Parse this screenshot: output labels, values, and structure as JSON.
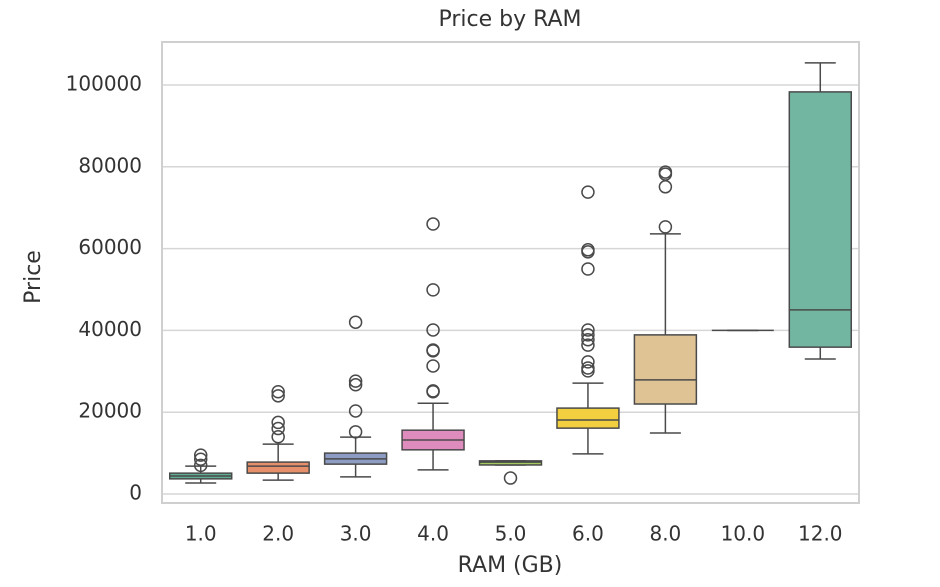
{
  "chart_data": {
    "type": "box",
    "title": "Price by RAM",
    "x_label": "RAM (GB)",
    "y_label": "Price",
    "categories": [
      "1.0",
      "2.0",
      "3.0",
      "4.0",
      "5.0",
      "6.0",
      "8.0",
      "10.0",
      "12.0"
    ],
    "colors": [
      "#5fae93",
      "#e5906b",
      "#8c9cc2",
      "#de8cbd",
      "#a3c95c",
      "#f2cf3f",
      "#dfc394",
      "#b0b0b0",
      "#72b6a1"
    ],
    "boxes": [
      {
        "whislo": 2700,
        "q1": 3700,
        "med": 4400,
        "q3": 5100,
        "whishi": 6800,
        "fliers": [
          7000,
          8500,
          9500
        ]
      },
      {
        "whislo": 3400,
        "q1": 5100,
        "med": 6800,
        "q3": 7800,
        "whishi": 12200,
        "fliers": [
          14000,
          16000,
          17500,
          24000,
          25000
        ]
      },
      {
        "whislo": 4200,
        "q1": 7300,
        "med": 8600,
        "q3": 10000,
        "whishi": 13900,
        "fliers": [
          15200,
          20300,
          26700,
          27600,
          42000
        ]
      },
      {
        "whislo": 5900,
        "q1": 10800,
        "med": 13200,
        "q3": 15600,
        "whishi": 22200,
        "fliers": [
          25000,
          25200,
          31300,
          35000,
          35200,
          40100,
          49900,
          66000
        ]
      },
      {
        "whislo": 7100,
        "q1": 7100,
        "med": 7800,
        "q3": 8100,
        "whishi": 8100,
        "fliers": [
          3900
        ]
      },
      {
        "whislo": 9800,
        "q1": 16100,
        "med": 18100,
        "q3": 21000,
        "whishi": 27100,
        "fliers": [
          30100,
          30800,
          32300,
          36400,
          37700,
          38900,
          40100,
          55000,
          59200,
          59700,
          73800
        ]
      },
      {
        "whislo": 14900,
        "q1": 22000,
        "med": 27900,
        "q3": 38900,
        "whishi": 63600,
        "fliers": [
          65300,
          75100,
          78200,
          78700
        ]
      },
      {
        "whislo": 40000,
        "q1": 40000,
        "med": 40000,
        "q3": 40000,
        "whishi": 40000,
        "fliers": []
      },
      {
        "whislo": 33000,
        "q1": 35900,
        "med": 45000,
        "q3": 98300,
        "whishi": 105400,
        "fliers": []
      }
    ],
    "ylim": [
      -2200,
      110500
    ],
    "yticks": [
      0,
      20000,
      40000,
      60000,
      80000,
      100000
    ],
    "grid": true
  }
}
